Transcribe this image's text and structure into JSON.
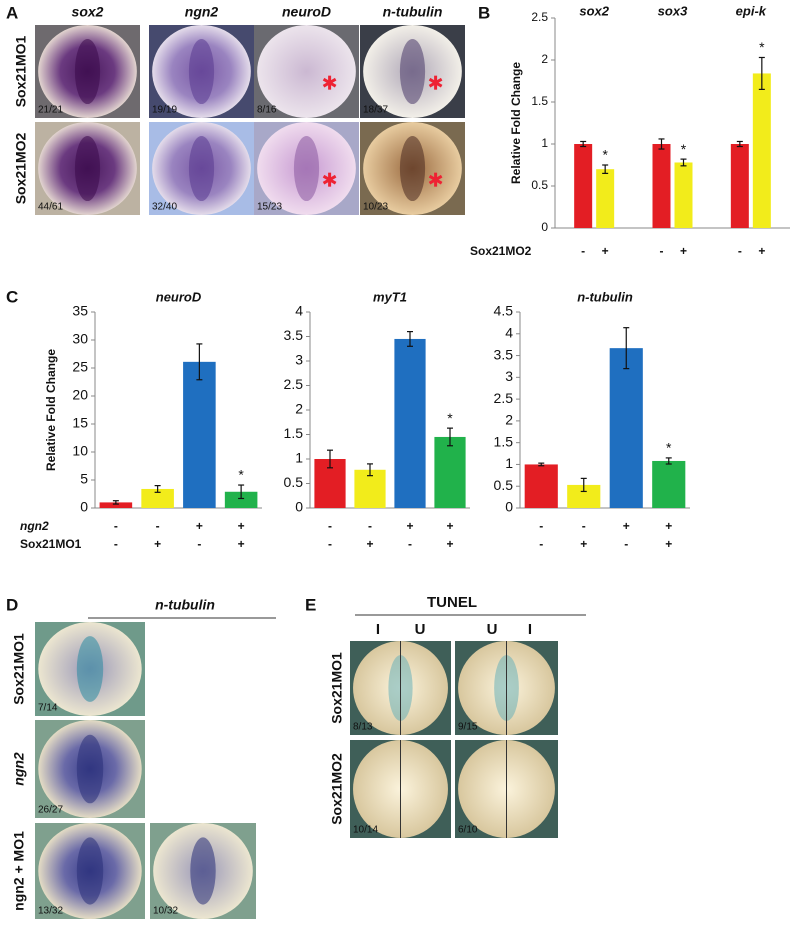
{
  "panel_a": {
    "letter": "A",
    "columns": [
      "sox2",
      "ngn2",
      "neuroD",
      "n-tubulin"
    ],
    "rows": [
      {
        "label": "Sox21MO1",
        "counts": [
          "21/21",
          "19/19",
          "8/16",
          "18/37"
        ]
      },
      {
        "label": "Sox21MO2",
        "counts": [
          "44/61",
          "32/40",
          "15/23",
          "10/23"
        ]
      }
    ]
  },
  "chart_data": [
    {
      "type": "bar",
      "letter": "B",
      "ylabel": "Relative Fold Change",
      "categories": [
        "sox2",
        "sox3",
        "epi-k"
      ],
      "series": [
        {
          "color": "#e31e24",
          "values": [
            1,
            1,
            1
          ],
          "errors": [
            0.03,
            0.06,
            0.03
          ]
        },
        {
          "color": "#f2ec1b",
          "values": [
            0.7,
            0.78,
            1.84
          ],
          "errors": [
            0.05,
            0.04,
            0.19
          ],
          "annotations": [
            "*",
            "*",
            "*"
          ]
        }
      ],
      "ylim": [
        0,
        2.5
      ],
      "yticks": [
        0,
        0.5,
        1,
        1.5,
        2,
        2.5
      ],
      "conditions": [
        {
          "name": "Sox21MO2",
          "values": [
            "-",
            "+",
            "-",
            "+",
            "-",
            "+"
          ]
        }
      ]
    },
    {
      "type": "bar",
      "letter": "C",
      "title": "neuroD",
      "ylabel": "Relative Fold Change",
      "values": [
        1.0,
        3.4,
        26.1,
        2.9
      ],
      "errors": [
        0.3,
        0.6,
        3.2,
        1.2
      ],
      "colors": [
        "#e31e24",
        "#f2ec1b",
        "#1f6fc0",
        "#21b24b"
      ],
      "annotations": [
        null,
        null,
        null,
        "*"
      ],
      "ylim": [
        0,
        35
      ],
      "yticks": [
        0,
        5,
        10,
        15,
        20,
        25,
        30,
        35
      ],
      "conditions": [
        {
          "name": "ngn2",
          "values": [
            "-",
            "-",
            "+",
            "+"
          ]
        },
        {
          "name": "Sox21MO1",
          "values": [
            "-",
            "+",
            "-",
            "+"
          ]
        }
      ]
    },
    {
      "type": "bar",
      "title": "myT1",
      "values": [
        1.0,
        0.78,
        3.45,
        1.45
      ],
      "errors": [
        0.18,
        0.12,
        0.15,
        0.18
      ],
      "colors": [
        "#e31e24",
        "#f2ec1b",
        "#1f6fc0",
        "#21b24b"
      ],
      "annotations": [
        null,
        null,
        null,
        "*"
      ],
      "ylim": [
        0,
        4
      ],
      "yticks": [
        0,
        0.5,
        1,
        1.5,
        2,
        2.5,
        3,
        3.5,
        4
      ],
      "conditions": [
        {
          "values": [
            "-",
            "-",
            "+",
            "+"
          ]
        },
        {
          "values": [
            "-",
            "+",
            "-",
            "+"
          ]
        }
      ]
    },
    {
      "type": "bar",
      "title": "n-tubulin",
      "values": [
        1.0,
        0.53,
        3.67,
        1.08
      ],
      "errors": [
        0.03,
        0.15,
        0.47,
        0.07
      ],
      "colors": [
        "#e31e24",
        "#f2ec1b",
        "#1f6fc0",
        "#21b24b"
      ],
      "annotations": [
        null,
        null,
        null,
        "*"
      ],
      "ylim": [
        0,
        4.5
      ],
      "yticks": [
        0,
        0.5,
        1,
        1.5,
        2,
        2.5,
        3,
        3.5,
        4,
        4.5
      ],
      "conditions": [
        {
          "values": [
            "-",
            "-",
            "+",
            "+"
          ]
        },
        {
          "values": [
            "-",
            "+",
            "-",
            "+"
          ]
        }
      ]
    }
  ],
  "panel_d": {
    "letter": "D",
    "title": "n-tubulin",
    "rows": [
      {
        "label": "Sox21MO1",
        "counts": [
          "7/14"
        ]
      },
      {
        "label": "ngn2",
        "counts": [
          "26/27"
        ]
      },
      {
        "label": "ngn2 + MO1",
        "counts": [
          "13/32",
          "10/32"
        ]
      }
    ]
  },
  "panel_e": {
    "letter": "E",
    "title": "TUNEL",
    "columns": [
      "I",
      "U",
      "U",
      "I"
    ],
    "rows": [
      {
        "label": "Sox21MO1",
        "counts": [
          "8/13",
          "9/15"
        ]
      },
      {
        "label": "Sox21MO2",
        "counts": [
          "10/14",
          "6/10"
        ]
      }
    ]
  }
}
